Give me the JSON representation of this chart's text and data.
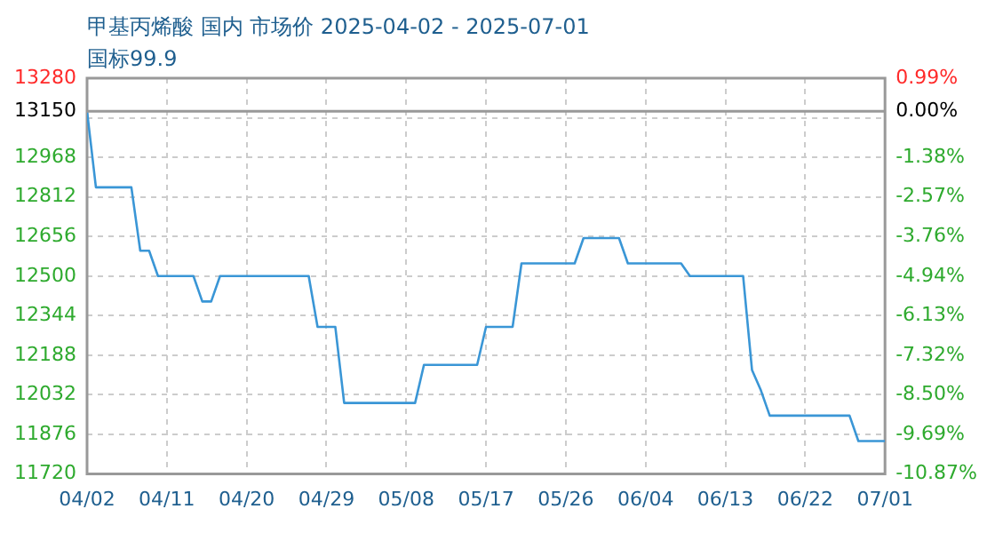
{
  "chart_data": {
    "type": "line",
    "title": "甲基丙烯酸 国内 市场价 2025-04-02 - 2025-07-01",
    "subtitle": "国标99.9",
    "series": [
      {
        "color": "#3a96d6",
        "x": [
          "--04-02",
          "--04-03",
          "--04-07",
          "--04-08",
          "--04-09",
          "--04-10",
          "--04-14",
          "--04-15",
          "--04-16",
          "--04-17",
          "--04-27",
          "--04-28",
          "--04-30",
          "--05-01",
          "--05-09",
          "--05-10",
          "--05-16",
          "--05-17",
          "--05-20",
          "--05-21",
          "--05-27",
          "--05-28",
          "--06-01",
          "--06-02",
          "--06-08",
          "--06-09",
          "--06-15",
          "--06-16",
          "--06-17",
          "--06-18",
          "--06-27",
          "--06-28",
          "--07-01"
        ],
        "values": [
          13150,
          12850,
          12850,
          12600,
          12600,
          12500,
          12500,
          12400,
          12400,
          12500,
          12500,
          12300,
          12300,
          12000,
          12000,
          12150,
          12150,
          12300,
          12300,
          12550,
          12550,
          12650,
          12650,
          12550,
          12550,
          12500,
          12500,
          12130,
          12050,
          11950,
          11950,
          11850,
          11850
        ]
      }
    ],
    "xlim": [
      "--04-02",
      "--07-01"
    ],
    "xticks": [
      {
        "value": "--04-02",
        "label": "04/02"
      },
      {
        "value": "--04-11",
        "label": "04/11"
      },
      {
        "value": "--04-20",
        "label": "04/20"
      },
      {
        "value": "--04-29",
        "label": "04/29"
      },
      {
        "value": "--05-08",
        "label": "05/08"
      },
      {
        "value": "--05-17",
        "label": "05/17"
      },
      {
        "value": "--05-26",
        "label": "05/26"
      },
      {
        "value": "--06-04",
        "label": "06/04"
      },
      {
        "value": "--06-13",
        "label": "06/13"
      },
      {
        "value": "--06-22",
        "label": "06/22"
      },
      {
        "value": "--07-01",
        "label": "07/01"
      }
    ],
    "ylim": [
      11720,
      13280
    ],
    "yticks": [
      11720,
      11876,
      12032,
      12188,
      12344,
      12500,
      12656,
      12812,
      12968,
      {
        "value": 13124,
        "label": null
      },
      13150,
      13280
    ],
    "y2lim": [
      -10.87,
      0.99
    ],
    "y2ticks": [
      {
        "value": -10.87,
        "label": "-10.87%"
      },
      {
        "value": -9.69,
        "label": "-9.69%"
      },
      {
        "value": -8.5,
        "label": "-8.50%"
      },
      {
        "value": -7.32,
        "label": "-7.32%"
      },
      {
        "value": -6.13,
        "label": "-6.13%"
      },
      {
        "value": -4.94,
        "label": "-4.94%"
      },
      {
        "value": -3.76,
        "label": "-3.76%"
      },
      {
        "value": -2.57,
        "label": "-2.57%"
      },
      {
        "value": -1.38,
        "label": "-1.38%"
      },
      {
        "value": 0,
        "label": "0.00%"
      },
      {
        "value": 0.99,
        "label": "0.99%"
      }
    ],
    "ref_lines": [
      {
        "axis": "y",
        "value": 13150,
        "color": "#999999"
      }
    ],
    "grid": true,
    "legend": false,
    "marker": "none",
    "line_style": "solid"
  }
}
